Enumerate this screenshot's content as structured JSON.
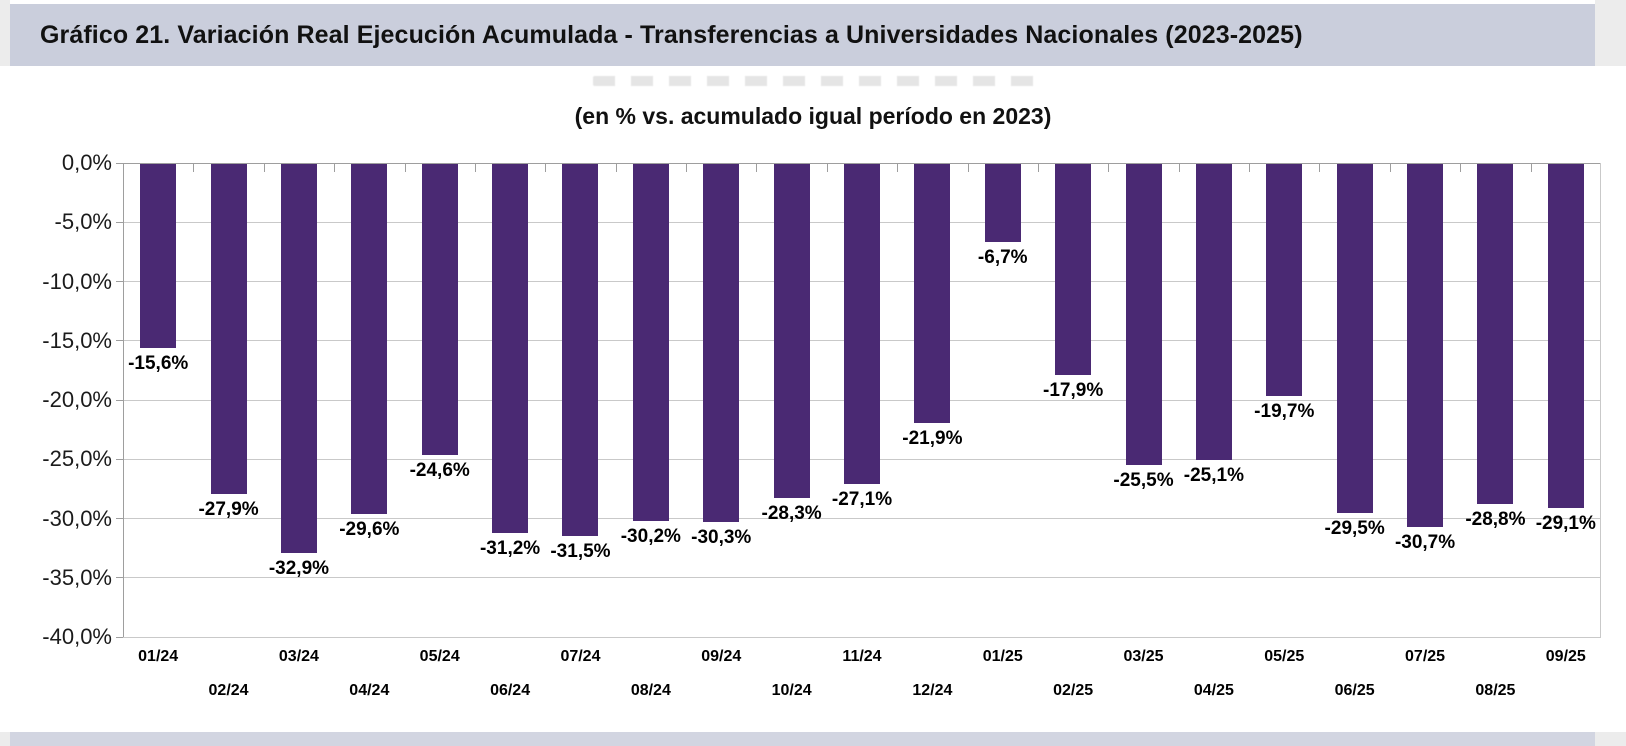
{
  "header": {
    "title": "Gráfico 21. Variación Real Ejecución Acumulada - Transferencias a Universidades Nacionales (2023-2025)"
  },
  "colors": {
    "header_band": "#CACEDC",
    "footer_band": "#D2D5E1",
    "edge_strip": "#ECECEC",
    "bar": "#4A2973",
    "gridline": "#C9C9C9",
    "axis": "#9E9E9E"
  },
  "chart_data": {
    "type": "bar",
    "title": "Gráfico 21. Variación Real Ejecución Acumulada - Transferencias a Universidades Nacionales (2023-2025)",
    "subtitle": "(en % vs. acumulado igual período en 2023)",
    "categories": [
      "01/24",
      "02/24",
      "03/24",
      "04/24",
      "05/24",
      "06/24",
      "07/24",
      "08/24",
      "09/24",
      "10/24",
      "11/24",
      "12/24",
      "01/25",
      "02/25",
      "03/25",
      "04/25",
      "05/25",
      "06/25",
      "07/25",
      "08/25",
      "09/25"
    ],
    "values": [
      -15.6,
      -27.9,
      -32.9,
      -29.6,
      -24.6,
      -31.2,
      -31.5,
      -30.2,
      -30.3,
      -28.3,
      -27.1,
      -21.9,
      -6.7,
      -17.9,
      -25.5,
      -25.1,
      -19.7,
      -29.5,
      -30.7,
      -28.8,
      -29.1
    ],
    "value_labels": [
      "-15,6%",
      "-27,9%",
      "-32,9%",
      "-29,6%",
      "-24,6%",
      "-31,2%",
      "-31,5%",
      "-30,2%",
      "-30,3%",
      "-28,3%",
      "-27,1%",
      "-21,9%",
      "-6,7%",
      "-17,9%",
      "-25,5%",
      "-25,1%",
      "-19,7%",
      "-29,5%",
      "-30,7%",
      "-28,8%",
      "-29,1%"
    ],
    "y_ticks": [
      "0,0%",
      "-5,0%",
      "-10,0%",
      "-15,0%",
      "-20,0%",
      "-25,0%",
      "-30,0%",
      "-35,0%",
      "-40,0%"
    ],
    "ylim": [
      0,
      -40
    ],
    "xlabel": "",
    "ylabel": "",
    "grid": true,
    "legend": "none",
    "bar_color": "#4A2973"
  }
}
